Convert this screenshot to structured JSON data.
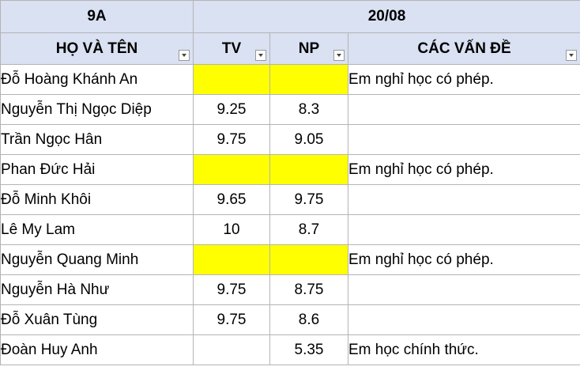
{
  "sheet": {
    "class_label": "9A",
    "date_label": "20/08",
    "headers": {
      "name": "HỌ VÀ TÊN",
      "tv": "TV",
      "np": "NP",
      "issues": "CÁC VẤN ĐỀ"
    },
    "highlight_color": "#ffff00",
    "header_color": "#d9e1f2",
    "rows": [
      {
        "name": "Đỗ Hoàng Khánh An",
        "tv": "",
        "np": "",
        "issue": "Em nghỉ học có phép.",
        "highlight": true
      },
      {
        "name": "Nguyễn Thị Ngọc Diệp",
        "tv": "9.25",
        "np": "8.3",
        "issue": "",
        "highlight": false
      },
      {
        "name": "Trần Ngọc Hân",
        "tv": "9.75",
        "np": "9.05",
        "issue": "",
        "highlight": false
      },
      {
        "name": "Phan Đức Hải",
        "tv": "",
        "np": "",
        "issue": "Em nghỉ học có phép.",
        "highlight": true
      },
      {
        "name": "Đỗ Minh Khôi",
        "tv": "9.65",
        "np": "9.75",
        "issue": "",
        "highlight": false
      },
      {
        "name": "Lê My Lam",
        "tv": "10",
        "np": "8.7",
        "issue": "",
        "highlight": false
      },
      {
        "name": "Nguyễn Quang Minh",
        "tv": "",
        "np": "",
        "issue": "Em nghỉ học có phép.",
        "highlight": true
      },
      {
        "name": "Nguyễn Hà Như",
        "tv": "9.75",
        "np": "8.75",
        "issue": "",
        "highlight": false
      },
      {
        "name": "Đỗ Xuân Tùng",
        "tv": "9.75",
        "np": "8.6",
        "issue": "",
        "highlight": false
      },
      {
        "name": "Đoàn Huy Anh",
        "tv": "",
        "np": "5.35",
        "issue": "Em học chính thức.",
        "highlight": false
      }
    ]
  }
}
